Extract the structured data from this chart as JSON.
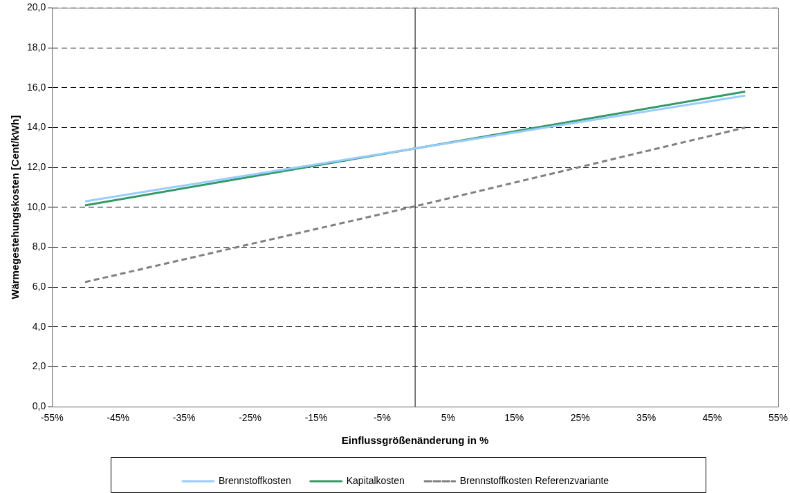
{
  "chart_data": {
    "type": "line",
    "xlabel": "Einflussgrößenänderung in %",
    "ylabel": "Wärmegestehungskosten [Cent/kWh]",
    "x": [
      -50,
      0,
      50
    ],
    "series": [
      {
        "name": "Brennstoffkosten",
        "color": "#99ccff",
        "values": [
          10.3,
          12.95,
          15.6
        ]
      },
      {
        "name": "Kapitalkosten",
        "color": "#339966",
        "values": [
          10.1,
          12.95,
          15.8
        ]
      },
      {
        "name": "Brennstoffkosten Referenzvariante",
        "color": "#808080",
        "values": [
          6.25,
          10.05,
          14.0
        ],
        "line_style": "dashed"
      }
    ],
    "xlim": [
      -55,
      55
    ],
    "xticks": [
      {
        "value": -55,
        "label": "-55%"
      },
      {
        "value": -45,
        "label": "-45%"
      },
      {
        "value": -35,
        "label": "-35%"
      },
      {
        "value": -25,
        "label": "-25%"
      },
      {
        "value": -15,
        "label": "-15%"
      },
      {
        "value": -5,
        "label": "-5%"
      },
      {
        "value": 5,
        "label": "5%"
      },
      {
        "value": 15,
        "label": "15%"
      },
      {
        "value": 25,
        "label": "25%"
      },
      {
        "value": 35,
        "label": "35%"
      },
      {
        "value": 45,
        "label": "45%"
      },
      {
        "value": 55,
        "label": "55%"
      }
    ],
    "ylim": [
      0,
      20
    ],
    "yticks": [
      {
        "value": 0,
        "label": "0,0"
      },
      {
        "value": 2,
        "label": "2,0"
      },
      {
        "value": 4,
        "label": "4,0"
      },
      {
        "value": 6,
        "label": "6,0"
      },
      {
        "value": 8,
        "label": "8,0"
      },
      {
        "value": 10,
        "label": "10,0"
      },
      {
        "value": 12,
        "label": "12,0"
      },
      {
        "value": 14,
        "label": "14,0"
      },
      {
        "value": 16,
        "label": "16,0"
      },
      {
        "value": 18,
        "label": "18,0"
      },
      {
        "value": 20,
        "label": "20,0"
      }
    ],
    "grid": "y",
    "ref_lines": [
      {
        "axis": "x",
        "value": 0,
        "color": "#000000",
        "line_style": "solid"
      }
    ],
    "legend": "bottom",
    "marker": "none",
    "line_style": "solid"
  }
}
